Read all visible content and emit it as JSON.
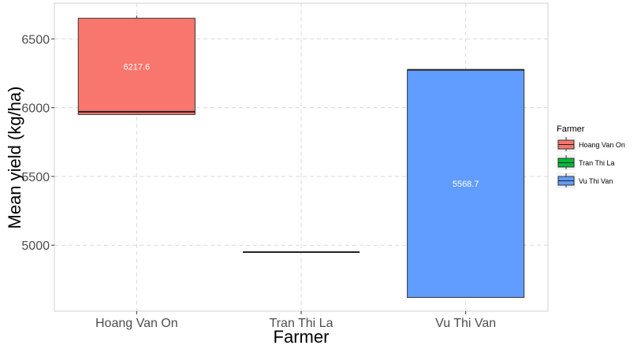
{
  "chart_data": {
    "type": "boxplot",
    "xlabel": "Farmer",
    "ylabel": "Mean yield (kg/ha)",
    "ylim": [
      4520,
      6760
    ],
    "yticks": [
      5000,
      5500,
      6000,
      6500
    ],
    "grid": true,
    "legend": {
      "title": "Farmer",
      "position": "right"
    },
    "categories": [
      "Hoang Van On",
      "Tran Thi La",
      "Vu Thi Van"
    ],
    "series": [
      {
        "name": "Hoang Van On",
        "color": "#F8766D",
        "lower": 5950,
        "q1": 5950,
        "median": 5970,
        "q3": 6650,
        "upper": 6670,
        "label": "6217.6"
      },
      {
        "name": "Tran Thi La",
        "color": "#00BA38",
        "lower": 4950,
        "q1": 4950,
        "median": 4950,
        "q3": 4950,
        "upper": 4950,
        "label": ""
      },
      {
        "name": "Vu Thi Van",
        "color": "#619CFF",
        "lower": 4620,
        "q1": 4620,
        "median": 6275,
        "q3": 6275,
        "upper": 6275,
        "label": "5568.7"
      }
    ]
  }
}
